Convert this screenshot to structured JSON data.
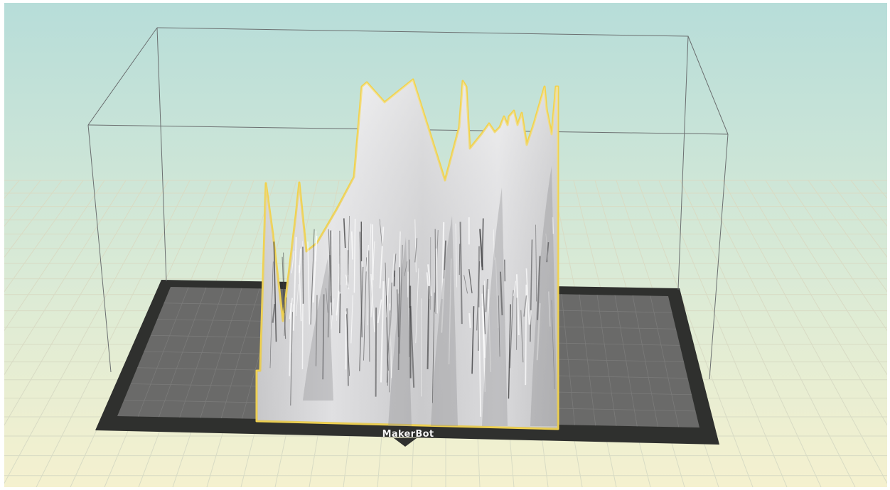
{
  "viewport": {
    "printer_brand": "MakerBot",
    "colors": {
      "background_top": "#b7ddd9",
      "background_bottom": "#f5f1cf",
      "floor_grid": "#e2e4cc",
      "build_plate_frame": "#2f302e",
      "build_plate_surface": "#6a6a69",
      "build_volume_lines": "#6b6f70",
      "model_fill": "#d9d9da",
      "model_selection_outline": "#f1d24e"
    }
  }
}
